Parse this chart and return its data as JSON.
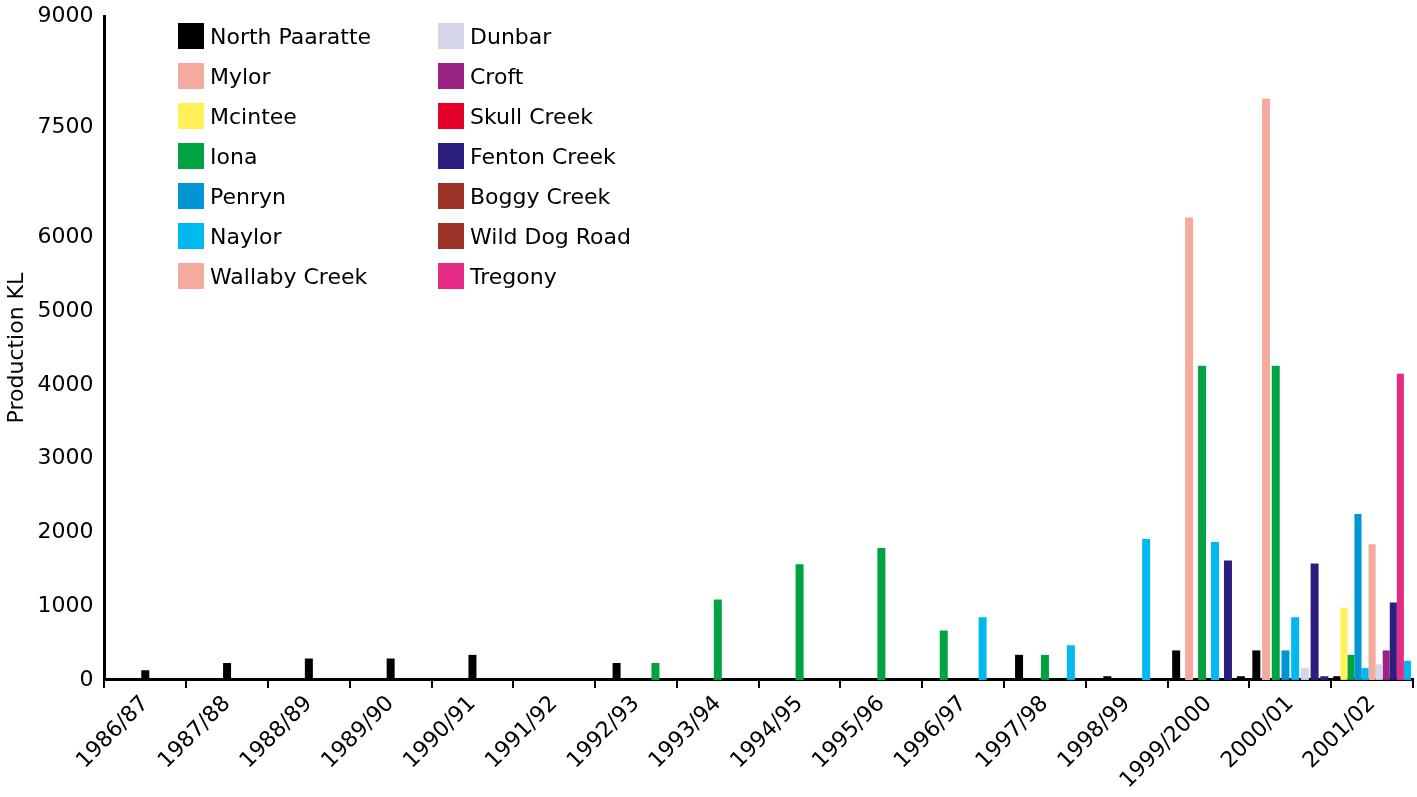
{
  "chart_data": {
    "type": "bar",
    "ylabel": "Production KL",
    "categories": [
      "1986/87",
      "1987/88",
      "1988/89",
      "1989/90",
      "1990/91",
      "1991/92",
      "1992/93",
      "1993/94",
      "1994/95",
      "1995/96",
      "1996/97",
      "1997/98",
      "1998/99",
      "1999/2000",
      "2000/01",
      "2001/02"
    ],
    "ylim": [
      0,
      9000
    ],
    "yticks": [
      0,
      1000,
      2000,
      3000,
      4000,
      5000,
      6000,
      7500,
      9000
    ],
    "grid": false,
    "legend": "top left",
    "series": [
      {
        "name": "North Paaratte",
        "color": "#000000",
        "values": [
          130,
          230,
          290,
          290,
          340,
          null,
          230,
          null,
          null,
          null,
          null,
          340,
          50,
          400,
          400,
          50
        ]
      },
      {
        "name": "Mylor",
        "color": "#f4aa9c",
        "values": [
          null,
          null,
          null,
          null,
          null,
          null,
          null,
          null,
          null,
          null,
          null,
          null,
          null,
          6270,
          7880,
          null
        ]
      },
      {
        "name": "Mcintee",
        "color": "#fff157",
        "values": [
          null,
          null,
          null,
          null,
          null,
          null,
          null,
          null,
          null,
          null,
          null,
          null,
          null,
          null,
          null,
          980
        ]
      },
      {
        "name": "Iona",
        "color": "#00a33f",
        "values": [
          null,
          null,
          null,
          null,
          null,
          null,
          230,
          1090,
          1570,
          1790,
          670,
          340,
          null,
          4260,
          4260,
          340
        ]
      },
      {
        "name": "Penryn",
        "color": "#0096d6",
        "values": [
          null,
          null,
          null,
          null,
          null,
          null,
          null,
          null,
          null,
          null,
          null,
          null,
          null,
          null,
          400,
          2250
        ]
      },
      {
        "name": "Naylor",
        "color": "#00b9f0",
        "values": [
          null,
          null,
          null,
          null,
          null,
          null,
          null,
          null,
          null,
          null,
          850,
          470,
          1910,
          1870,
          850,
          160
        ]
      },
      {
        "name": "Wallaby Creek",
        "color": "#f4aa9c",
        "values": [
          null,
          null,
          null,
          null,
          null,
          null,
          null,
          null,
          null,
          null,
          null,
          null,
          null,
          null,
          null,
          1840
        ]
      },
      {
        "name": "Dunbar",
        "color": "#d5d5ea",
        "values": [
          null,
          null,
          null,
          null,
          null,
          null,
          null,
          null,
          null,
          null,
          null,
          null,
          null,
          null,
          160,
          210
        ]
      },
      {
        "name": "Croft",
        "color": "#9a2381",
        "values": [
          null,
          null,
          null,
          null,
          null,
          null,
          null,
          null,
          null,
          null,
          null,
          null,
          null,
          null,
          null,
          400
        ]
      },
      {
        "name": "Skull Creek",
        "color": "#e4002b",
        "values": [
          null,
          null,
          null,
          null,
          null,
          null,
          null,
          null,
          null,
          null,
          null,
          null,
          null,
          null,
          null,
          null
        ]
      },
      {
        "name": "Fenton Creek",
        "color": "#2a1f7e",
        "values": [
          null,
          null,
          null,
          null,
          null,
          null,
          null,
          null,
          null,
          null,
          null,
          null,
          null,
          1620,
          1580,
          1050
        ]
      },
      {
        "name": "Boggy Creek",
        "color": "#9c3228",
        "values": [
          null,
          null,
          null,
          null,
          null,
          null,
          null,
          null,
          null,
          null,
          null,
          null,
          null,
          null,
          null,
          null
        ]
      },
      {
        "name": "Wild Dog Road",
        "color": "#9c3228",
        "values": [
          null,
          null,
          null,
          null,
          null,
          null,
          null,
          null,
          null,
          null,
          null,
          null,
          null,
          null,
          null,
          null
        ]
      },
      {
        "name": "Tregony",
        "color": "#e52b83",
        "values": [
          null,
          null,
          null,
          null,
          null,
          null,
          null,
          null,
          null,
          null,
          null,
          null,
          null,
          null,
          null,
          4150
        ]
      },
      {
        "color": "#000000",
        "values": [
          null,
          null,
          null,
          null,
          null,
          null,
          null,
          null,
          null,
          null,
          null,
          null,
          null,
          50,
          null,
          null
        ]
      },
      {
        "color": "#2a1f7e",
        "values": [
          null,
          null,
          null,
          null,
          null,
          null,
          null,
          null,
          null,
          null,
          null,
          null,
          null,
          null,
          50,
          null
        ]
      },
      {
        "color": "#00b9f0",
        "values": [
          null,
          null,
          null,
          null,
          null,
          null,
          null,
          null,
          null,
          null,
          null,
          null,
          null,
          null,
          null,
          260
        ]
      }
    ]
  }
}
